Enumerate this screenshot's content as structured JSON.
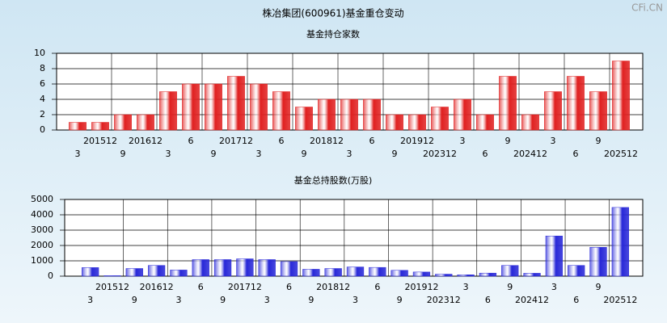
{
  "title": "株冶集团(600961)基金重仓变动",
  "watermark": "CFi.CN",
  "chart_data": [
    {
      "type": "bar",
      "title": "基金持仓家数",
      "color": "#e02020",
      "grid": true,
      "categories": [
        "3",
        "201512",
        "9",
        "201612",
        "3",
        "6",
        "9",
        "201712",
        "3",
        "6",
        "9",
        "201812",
        "3",
        "6",
        "9",
        "201912",
        "202312",
        "3",
        "6",
        "9",
        "202412",
        "3",
        "6",
        "9",
        "202512"
      ],
      "values": [
        1,
        1,
        2,
        2,
        5,
        6,
        6,
        7,
        6,
        5,
        3,
        4,
        4,
        4,
        2,
        2,
        3,
        4,
        2,
        7,
        2,
        5,
        7,
        5,
        9
      ],
      "ylim": [
        0,
        10
      ],
      "yticks": [
        0,
        2,
        4,
        6,
        8,
        10
      ]
    },
    {
      "type": "bar",
      "title": "基金总持股数(万股)",
      "color": "#2828d8",
      "grid": true,
      "categories": [
        "3",
        "201512",
        "9",
        "201612",
        "3",
        "6",
        "9",
        "201712",
        "3",
        "6",
        "9",
        "201812",
        "3",
        "6",
        "9",
        "201912",
        "202312",
        "3",
        "6",
        "9",
        "202412",
        "3",
        "6",
        "9",
        "202512"
      ],
      "values": [
        560,
        30,
        500,
        700,
        400,
        1080,
        1080,
        1130,
        1080,
        950,
        450,
        500,
        600,
        570,
        380,
        270,
        130,
        90,
        200,
        700,
        190,
        2620,
        700,
        1880,
        4480
      ],
      "ylim": [
        0,
        5000
      ],
      "yticks": [
        0,
        1000,
        2000,
        3000,
        4000,
        5000
      ]
    }
  ]
}
